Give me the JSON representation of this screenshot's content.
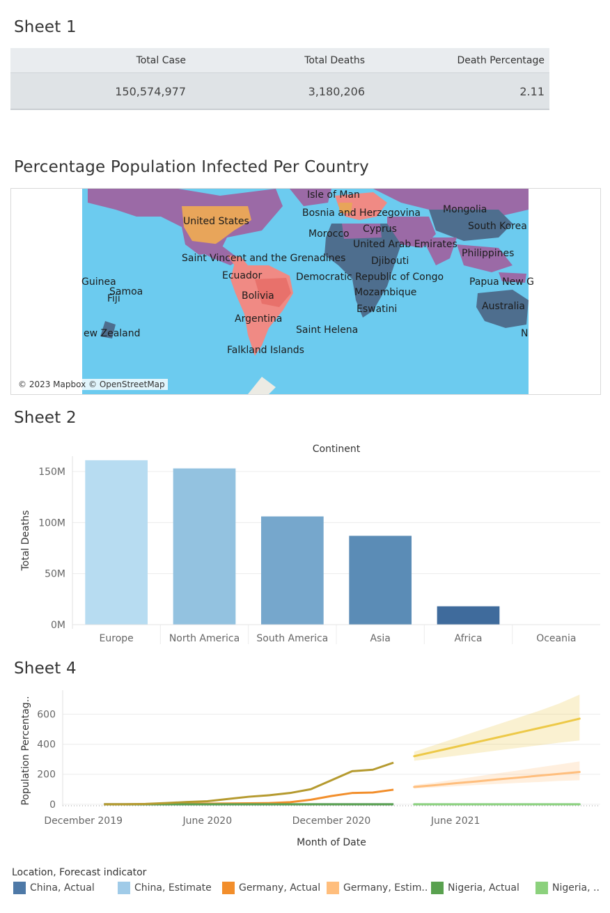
{
  "sheet1": {
    "title": "Sheet 1",
    "headers": [
      "Total Case",
      "Total Deaths",
      "Death Percentage"
    ],
    "values": [
      "150,574,977",
      "3,180,206",
      "2.11"
    ]
  },
  "map": {
    "title": "Percentage Population Infected Per Country",
    "attribution": "© 2023 Mapbox © OpenStreetMap",
    "labels": [
      "Isle of Man",
      "Bosnia and Herzegovina",
      "Mongolia",
      "United States",
      "Cyprus",
      "South Korea",
      "Morocco",
      "United Arab Emirates",
      "Philippines",
      "Saint Vincent and the Grenadines",
      "Djibouti",
      "Ecuador",
      "Democratic Republic of Congo",
      "Guinea",
      "Papua New G",
      "Samoa",
      "Fiji",
      "Mozambique",
      "Bolivia",
      "Australia",
      "Eswatini",
      "Argentina",
      "Saint Helena",
      "ew Zealand",
      "N",
      "Falkland Islands"
    ],
    "colors": {
      "ocean": "#6ccbef",
      "high": "#f08a84",
      "mid": "#9b6aa6",
      "low": "#4e6e8e",
      "orange": "#e8a55a"
    }
  },
  "sheet2": {
    "title": "Sheet 2"
  },
  "sheet4": {
    "title": "Sheet 4"
  },
  "chart_data": [
    {
      "type": "bar",
      "title": "Continent",
      "ylabel": "Total Deaths",
      "categories": [
        "Europe",
        "North America",
        "South America",
        "Asia",
        "Africa",
        "Oceania"
      ],
      "values": [
        161000000,
        153000000,
        106000000,
        87000000,
        18000000,
        0
      ],
      "yticks": [
        "150M",
        "100M",
        "50M",
        "0M"
      ],
      "ytick_values": [
        150000000,
        100000000,
        50000000,
        0
      ],
      "ylim": [
        0,
        165000000
      ],
      "colors": [
        "#b7dcf1",
        "#93c2e0",
        "#76a7cc",
        "#5b8cb6",
        "#3f6b9c",
        "#2d527c"
      ],
      "grid": true
    },
    {
      "type": "line",
      "xlabel": "Month of Date",
      "ylabel": "Population Percentag..",
      "xticks": [
        "December 2019",
        "June 2020",
        "December 2020",
        "June 2021"
      ],
      "yticks": [
        "600",
        "400",
        "200",
        "0"
      ],
      "ytick_values": [
        600,
        400,
        200,
        0
      ],
      "ylim": [
        -10,
        760
      ],
      "x": [
        "2020-01",
        "2020-02",
        "2020-03",
        "2020-04",
        "2020-05",
        "2020-06",
        "2020-07",
        "2020-08",
        "2020-09",
        "2020-10",
        "2020-11",
        "2020-12",
        "2021-01",
        "2021-02",
        "2021-03"
      ],
      "forecast_x": [
        "2021-04",
        "2021-05",
        "2021-06",
        "2021-07",
        "2021-08",
        "2021-09",
        "2021-10",
        "2021-11",
        "2021-12"
      ],
      "series": [
        {
          "name": "China, Actual",
          "color": "#4e79a7",
          "values": [
            0,
            0,
            0,
            0,
            0,
            0,
            0,
            0,
            0,
            0,
            0,
            0,
            0,
            0,
            0
          ]
        },
        {
          "name": "Germany, Actual",
          "color": "#f28e2b",
          "values": [
            0,
            0,
            1,
            2,
            3,
            4,
            5,
            6,
            8,
            14,
            30,
            55,
            75,
            78,
            97
          ]
        },
        {
          "name": "Nigeria, Actual",
          "color": "#59a14f",
          "values": [
            0,
            0,
            0,
            0,
            0,
            0,
            0,
            0,
            0,
            0,
            0,
            0,
            0,
            0,
            0
          ]
        },
        {
          "name": "",
          "color": "#b59a2f",
          "values": [
            0,
            0,
            2,
            8,
            15,
            20,
            35,
            50,
            60,
            75,
            100,
            160,
            220,
            230,
            277
          ]
        },
        {
          "name": "China, Estimate",
          "color": "#a0cbe8",
          "forecast": [
            0,
            0,
            0,
            0,
            0,
            0,
            0,
            0,
            0
          ]
        },
        {
          "name": "Germany, Estim..",
          "color": "#ffbe7d",
          "forecast": [
            115,
            127,
            140,
            152,
            165,
            177,
            190,
            202,
            215
          ],
          "band_low": [
            105,
            112,
            120,
            128,
            135,
            142,
            148,
            155,
            160
          ],
          "band_high": [
            128,
            145,
            165,
            185,
            205,
            225,
            245,
            265,
            285
          ]
        },
        {
          "name": "Nigeria, ..",
          "color": "#8cd17d",
          "forecast": [
            0,
            0,
            0,
            0,
            0,
            0,
            0,
            0,
            0
          ]
        },
        {
          "name": "",
          "color": "#edc948",
          "forecast": [
            320,
            351,
            382,
            413,
            444,
            475,
            506,
            537,
            570
          ],
          "band_low": [
            290,
            305,
            322,
            340,
            358,
            375,
            392,
            410,
            425
          ],
          "band_high": [
            350,
            395,
            440,
            485,
            530,
            575,
            620,
            670,
            730
          ]
        }
      ]
    }
  ],
  "legend": {
    "title": "Location, Forecast indicator",
    "items": [
      {
        "label": "China, Actual",
        "color": "#4e79a7"
      },
      {
        "label": "China, Estimate",
        "color": "#a0cbe8"
      },
      {
        "label": "Germany, Actual",
        "color": "#f28e2b"
      },
      {
        "label": "Germany, Estim..",
        "color": "#ffbe7d"
      },
      {
        "label": "Nigeria, Actual",
        "color": "#59a14f"
      },
      {
        "label": "Nigeria, ..",
        "color": "#8cd17d"
      }
    ]
  }
}
